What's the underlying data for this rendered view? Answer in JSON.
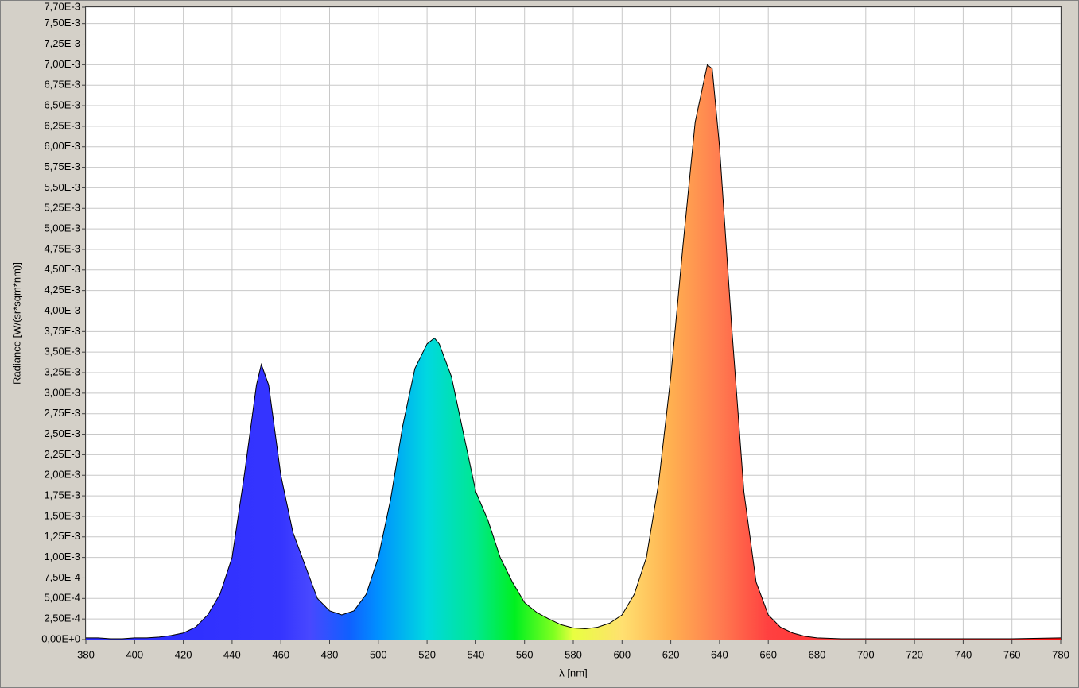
{
  "chart_data": {
    "type": "area",
    "xlabel": "λ [nm]",
    "ylabel": "Radiance [W/(sr*sqm*nm)]",
    "x": [
      380,
      385,
      390,
      395,
      400,
      405,
      410,
      415,
      420,
      425,
      430,
      435,
      440,
      445,
      450,
      452,
      455,
      460,
      465,
      470,
      475,
      480,
      485,
      490,
      495,
      500,
      505,
      510,
      515,
      520,
      523,
      525,
      530,
      535,
      540,
      545,
      550,
      555,
      560,
      565,
      570,
      575,
      580,
      585,
      590,
      595,
      600,
      605,
      610,
      615,
      620,
      625,
      630,
      635,
      637,
      640,
      645,
      650,
      655,
      660,
      665,
      670,
      675,
      680,
      690,
      700,
      720,
      740,
      760,
      780
    ],
    "values": [
      2e-05,
      2e-05,
      1e-05,
      1e-05,
      2e-05,
      2e-05,
      3e-05,
      5e-05,
      8e-05,
      0.00015,
      0.0003,
      0.00055,
      0.001,
      0.002,
      0.0031,
      0.00335,
      0.0031,
      0.002,
      0.0013,
      0.0009,
      0.0005,
      0.00035,
      0.0003,
      0.00035,
      0.00055,
      0.001,
      0.0017,
      0.0026,
      0.0033,
      0.0036,
      0.00367,
      0.0036,
      0.0032,
      0.0025,
      0.0018,
      0.00145,
      0.001,
      0.0007,
      0.00045,
      0.00033,
      0.00025,
      0.00018,
      0.00014,
      0.00013,
      0.00015,
      0.0002,
      0.0003,
      0.00055,
      0.001,
      0.0019,
      0.0032,
      0.0048,
      0.0063,
      0.007,
      0.00695,
      0.006,
      0.0038,
      0.0018,
      0.0007,
      0.0003,
      0.00015,
      8e-05,
      4e-05,
      2e-05,
      1e-05,
      1e-05,
      1e-05,
      1e-05,
      1e-05,
      2e-05
    ],
    "color": "#000000",
    "xlim": [
      380,
      780
    ],
    "xticks": [
      380,
      400,
      420,
      440,
      460,
      480,
      500,
      520,
      540,
      560,
      580,
      600,
      620,
      640,
      660,
      680,
      700,
      720,
      740,
      760,
      780
    ],
    "ylim": [
      0,
      0.0077
    ],
    "yticks": [
      {
        "value": 0,
        "label": "0,00E+0"
      },
      {
        "value": 0.00025,
        "label": "2,50E-4"
      },
      {
        "value": 0.0005,
        "label": "5,00E-4"
      },
      {
        "value": 0.00075,
        "label": "7,50E-4"
      },
      {
        "value": 0.001,
        "label": "1,00E-3"
      },
      {
        "value": 0.00125,
        "label": "1,25E-3"
      },
      {
        "value": 0.0015,
        "label": "1,50E-3"
      },
      {
        "value": 0.00175,
        "label": "1,75E-3"
      },
      {
        "value": 0.002,
        "label": "2,00E-3"
      },
      {
        "value": 0.00225,
        "label": "2,25E-3"
      },
      {
        "value": 0.0025,
        "label": "2,50E-3"
      },
      {
        "value": 0.00275,
        "label": "2,75E-3"
      },
      {
        "value": 0.003,
        "label": "3,00E-3"
      },
      {
        "value": 0.00325,
        "label": "3,25E-3"
      },
      {
        "value": 0.0035,
        "label": "3,50E-3"
      },
      {
        "value": 0.00375,
        "label": "3,75E-3"
      },
      {
        "value": 0.004,
        "label": "4,00E-3"
      },
      {
        "value": 0.00425,
        "label": "4,25E-3"
      },
      {
        "value": 0.0045,
        "label": "4,50E-3"
      },
      {
        "value": 0.00475,
        "label": "4,75E-3"
      },
      {
        "value": 0.005,
        "label": "5,00E-3"
      },
      {
        "value": 0.00525,
        "label": "5,25E-3"
      },
      {
        "value": 0.0055,
        "label": "5,50E-3"
      },
      {
        "value": 0.00575,
        "label": "5,75E-3"
      },
      {
        "value": 0.006,
        "label": "6,00E-3"
      },
      {
        "value": 0.00625,
        "label": "6,25E-3"
      },
      {
        "value": 0.0065,
        "label": "6,50E-3"
      },
      {
        "value": 0.00675,
        "label": "6,75E-3"
      },
      {
        "value": 0.007,
        "label": "7,00E-3"
      },
      {
        "value": 0.00725,
        "label": "7,25E-3"
      },
      {
        "value": 0.0075,
        "label": "7,50E-3"
      },
      {
        "value": 0.0077,
        "label": "7,70E-3"
      }
    ],
    "grid": true
  }
}
